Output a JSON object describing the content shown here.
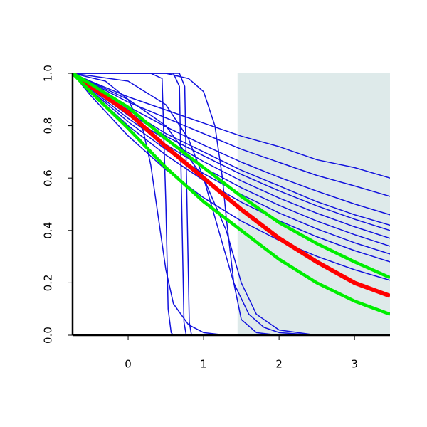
{
  "chart_data": {
    "type": "line",
    "xlim": [
      -0.736,
      3.47
    ],
    "ylim": [
      0,
      1
    ],
    "xticks": [
      0,
      1,
      2,
      3
    ],
    "yticks": [
      {
        "value": 0,
        "label": "0.0"
      },
      0.2,
      0.4,
      0.6,
      0.8,
      {
        "value": 1,
        "label": "1.0"
      }
    ],
    "shade": {
      "x": [
        1.45,
        3.47
      ],
      "color": "#deeaea"
    },
    "series": [
      {
        "color": "#1010dd",
        "width": 1.5,
        "x": [
          -0.736,
          -0.5,
          0,
          0.5,
          1,
          1.5,
          2,
          2.5,
          3,
          3.47
        ],
        "values": [
          1,
          0.97,
          0.91,
          0.86,
          0.81,
          0.76,
          0.72,
          0.67,
          0.64,
          0.6
        ]
      },
      {
        "color": "#1010dd",
        "width": 1.5,
        "x": [
          -0.736,
          -0.5,
          0,
          0.5,
          1,
          1.5,
          2,
          2.5,
          3,
          3.47
        ],
        "values": [
          1,
          0.965,
          0.89,
          0.83,
          0.77,
          0.71,
          0.66,
          0.61,
          0.57,
          0.53
        ]
      },
      {
        "color": "#1010dd",
        "width": 1.5,
        "x": [
          -0.736,
          -0.5,
          0,
          0.5,
          1,
          1.5,
          2,
          2.5,
          3,
          3.47
        ],
        "values": [
          1,
          0.957,
          0.873,
          0.796,
          0.726,
          0.661,
          0.603,
          0.55,
          0.501,
          0.46
        ]
      },
      {
        "color": "#1010dd",
        "width": 1.5,
        "x": [
          -0.736,
          -0.5,
          0,
          0.5,
          1,
          1.5,
          2,
          2.5,
          3,
          3.47
        ],
        "values": [
          1,
          0.95,
          0.86,
          0.77,
          0.7,
          0.63,
          0.57,
          0.51,
          0.46,
          0.42
        ]
      },
      {
        "color": "#1010dd",
        "width": 1.5,
        "x": [
          -0.736,
          -0.5,
          0,
          0.5,
          1,
          1.5,
          2,
          2.5,
          3,
          3.47
        ],
        "values": [
          1,
          0.95,
          0.85,
          0.76,
          0.685,
          0.614,
          0.551,
          0.494,
          0.443,
          0.4
        ]
      },
      {
        "color": "#1010dd",
        "width": 1.5,
        "x": [
          -0.736,
          -0.5,
          0,
          0.5,
          1,
          1.5,
          2,
          2.5,
          3,
          3.47
        ],
        "values": [
          1,
          0.946,
          0.84,
          0.746,
          0.663,
          0.589,
          0.524,
          0.466,
          0.414,
          0.37
        ]
      },
      {
        "color": "#1010dd",
        "width": 1.5,
        "x": [
          -0.736,
          -0.5,
          0,
          0.5,
          1,
          1.5,
          2,
          2.5,
          3,
          3.47
        ],
        "values": [
          1,
          0.941,
          0.828,
          0.728,
          0.64,
          0.563,
          0.496,
          0.436,
          0.384,
          0.34
        ]
      },
      {
        "color": "#1010dd",
        "width": 1.5,
        "x": [
          -0.736,
          -0.5,
          0,
          0.5,
          1,
          1.5,
          2,
          2.5,
          3,
          3.47
        ],
        "values": [
          1,
          0.936,
          0.815,
          0.709,
          0.617,
          0.537,
          0.467,
          0.406,
          0.353,
          0.31
        ]
      },
      {
        "color": "#1010dd",
        "width": 1.5,
        "x": [
          -0.736,
          -0.5,
          0,
          0.5,
          1,
          1.5,
          2,
          2.5,
          3,
          3.47
        ],
        "values": [
          1,
          0.931,
          0.8,
          0.688,
          0.591,
          0.508,
          0.437,
          0.376,
          0.323,
          0.28
        ]
      },
      {
        "color": "#1010dd",
        "width": 1.5,
        "x": [
          -0.736,
          -0.5,
          0,
          0.5,
          1,
          1.5,
          2,
          2.5,
          3,
          3.47
        ],
        "values": [
          1,
          0.916,
          0.761,
          0.632,
          0.525,
          0.436,
          0.362,
          0.301,
          0.25,
          0.21
        ]
      },
      {
        "color": "#1010dd",
        "width": 1.5,
        "x": [
          -0.736,
          0.3,
          0.45,
          0.5,
          0.53,
          0.57,
          0.6,
          3.47
        ],
        "values": [
          1,
          1,
          0.98,
          0.5,
          0.1,
          0.01,
          0,
          0
        ]
      },
      {
        "color": "#1010dd",
        "width": 1.5,
        "x": [
          -0.736,
          0.6,
          0.68,
          0.71,
          0.74,
          0.77,
          3.47
        ],
        "values": [
          1,
          1,
          0.95,
          0.5,
          0.05,
          0,
          0
        ]
      },
      {
        "color": "#1010dd",
        "width": 1.5,
        "x": [
          -0.736,
          0.68,
          0.75,
          0.78,
          0.81,
          0.84,
          3.47
        ],
        "values": [
          1,
          1,
          0.95,
          0.5,
          0.05,
          0,
          0
        ]
      },
      {
        "color": "#1010dd",
        "width": 1.5,
        "x": [
          -0.736,
          0.5,
          0.8,
          1.0,
          1.15,
          1.25,
          1.3,
          1.4,
          1.5,
          1.7,
          2.0,
          3.47
        ],
        "values": [
          1,
          1,
          0.98,
          0.93,
          0.8,
          0.6,
          0.45,
          0.2,
          0.06,
          0.01,
          0,
          0
        ]
      },
      {
        "color": "#1010dd",
        "width": 1.5,
        "x": [
          -0.736,
          -0.3,
          0,
          0.2,
          0.3,
          0.4,
          0.5,
          0.6,
          0.8,
          1.0,
          1.3,
          3.47
        ],
        "values": [
          1,
          0.97,
          0.9,
          0.78,
          0.65,
          0.45,
          0.25,
          0.12,
          0.04,
          0.01,
          0,
          0
        ]
      },
      {
        "color": "#1010dd",
        "width": 1.5,
        "x": [
          -0.736,
          0,
          0.5,
          0.8,
          1.0,
          1.2,
          1.4,
          1.6,
          1.8,
          2.0,
          2.5,
          3.47
        ],
        "values": [
          1,
          0.97,
          0.88,
          0.75,
          0.6,
          0.4,
          0.2,
          0.08,
          0.03,
          0.01,
          0,
          0
        ]
      },
      {
        "color": "#1010dd",
        "width": 1.5,
        "x": [
          -0.736,
          0,
          0.5,
          1,
          1.3,
          1.5,
          1.7,
          2,
          2.5,
          3.47
        ],
        "values": [
          1,
          0.9,
          0.8,
          0.6,
          0.4,
          0.2,
          0.08,
          0.02,
          0,
          0
        ]
      },
      {
        "color": "#ff0000",
        "width": 6,
        "x": [
          -0.736,
          -0.5,
          0,
          0.5,
          1,
          1.5,
          2,
          2.5,
          3,
          3.47
        ],
        "values": [
          1,
          0.95,
          0.85,
          0.72,
          0.6,
          0.48,
          0.37,
          0.28,
          0.2,
          0.15
        ]
      },
      {
        "color": "#00ee00",
        "width": 4.5,
        "x": [
          -0.736,
          -0.5,
          0,
          0.5,
          1,
          1.5,
          2,
          2.5,
          3,
          3.47
        ],
        "values": [
          1,
          0.96,
          0.87,
          0.75,
          0.64,
          0.53,
          0.43,
          0.35,
          0.28,
          0.22
        ]
      },
      {
        "color": "#00ee00",
        "width": 4.5,
        "x": [
          -0.736,
          -0.5,
          0,
          0.5,
          1,
          1.5,
          2,
          2.5,
          3,
          3.47
        ],
        "values": [
          1,
          0.93,
          0.79,
          0.64,
          0.51,
          0.4,
          0.29,
          0.2,
          0.13,
          0.08
        ]
      }
    ]
  }
}
